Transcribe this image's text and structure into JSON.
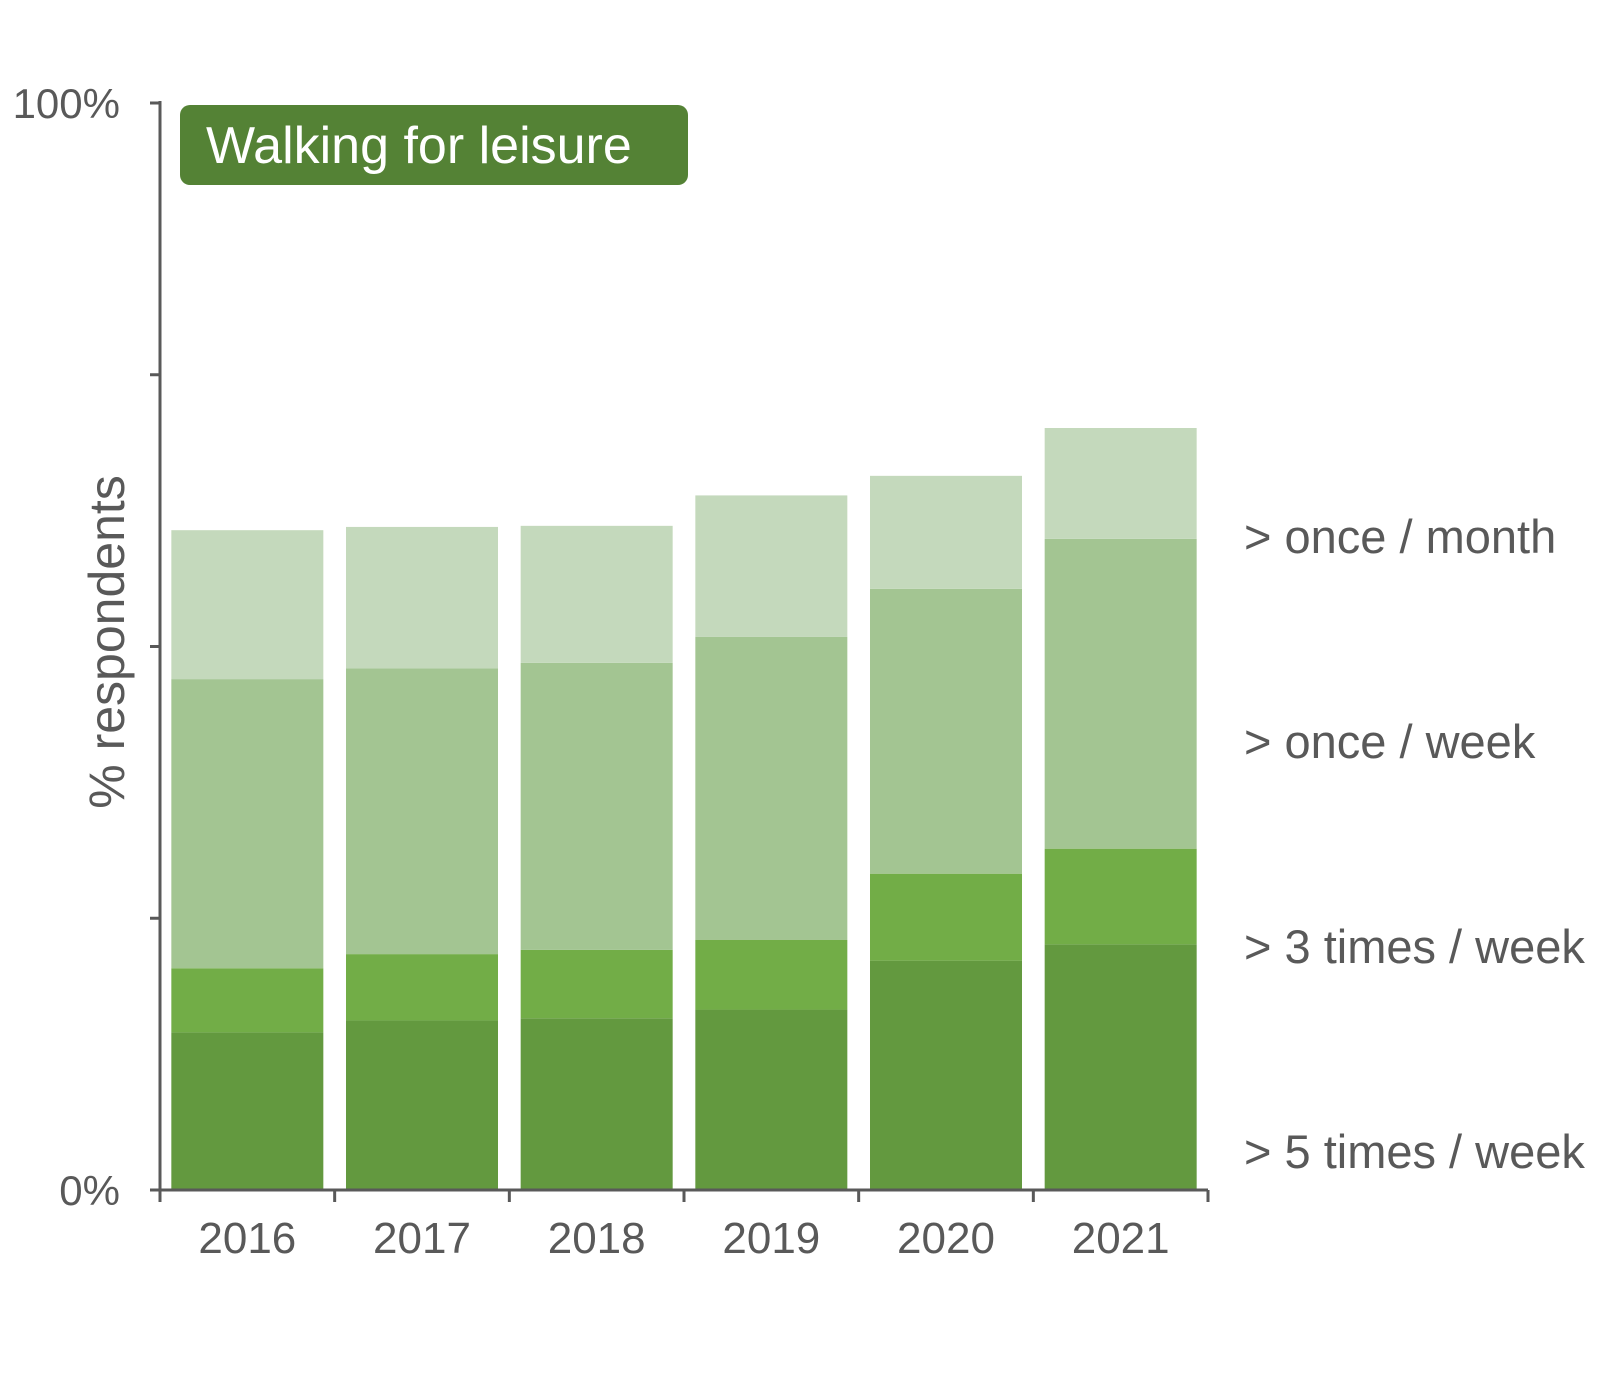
{
  "chart_data": {
    "type": "bar",
    "stacked": true,
    "title": "",
    "badge_label": "Walking for leisure",
    "xlabel": "",
    "ylabel": "% respondents",
    "ylim": [
      0,
      100
    ],
    "y_tick_labels": [
      "0%",
      "100%"
    ],
    "categories": [
      "2016",
      "2017",
      "2018",
      "2019",
      "2020",
      "2021"
    ],
    "series": [
      {
        "name": "> 5 times / week",
        "color": "#63993f",
        "values": [
          14.5,
          15.6,
          15.8,
          16.6,
          21.1,
          22.6
        ]
      },
      {
        "name": "> 3 times / week",
        "color": "#72ad47",
        "values": [
          5.9,
          6.1,
          6.3,
          6.4,
          8.0,
          8.8
        ]
      },
      {
        "name": "> once / week",
        "color": "#a3c592",
        "values": [
          26.6,
          26.3,
          26.4,
          27.9,
          26.2,
          28.5
        ]
      },
      {
        "name": "> once / month",
        "color": "#c4d9bc",
        "values": [
          13.7,
          13.0,
          12.6,
          13.0,
          10.4,
          10.2
        ]
      }
    ],
    "grid": false,
    "legend": "right, aligned with stacked segments",
    "colors": {
      "axis": "#595959",
      "text": "#595959",
      "badge_background": "#548235",
      "badge_text": "#ffffff"
    }
  }
}
